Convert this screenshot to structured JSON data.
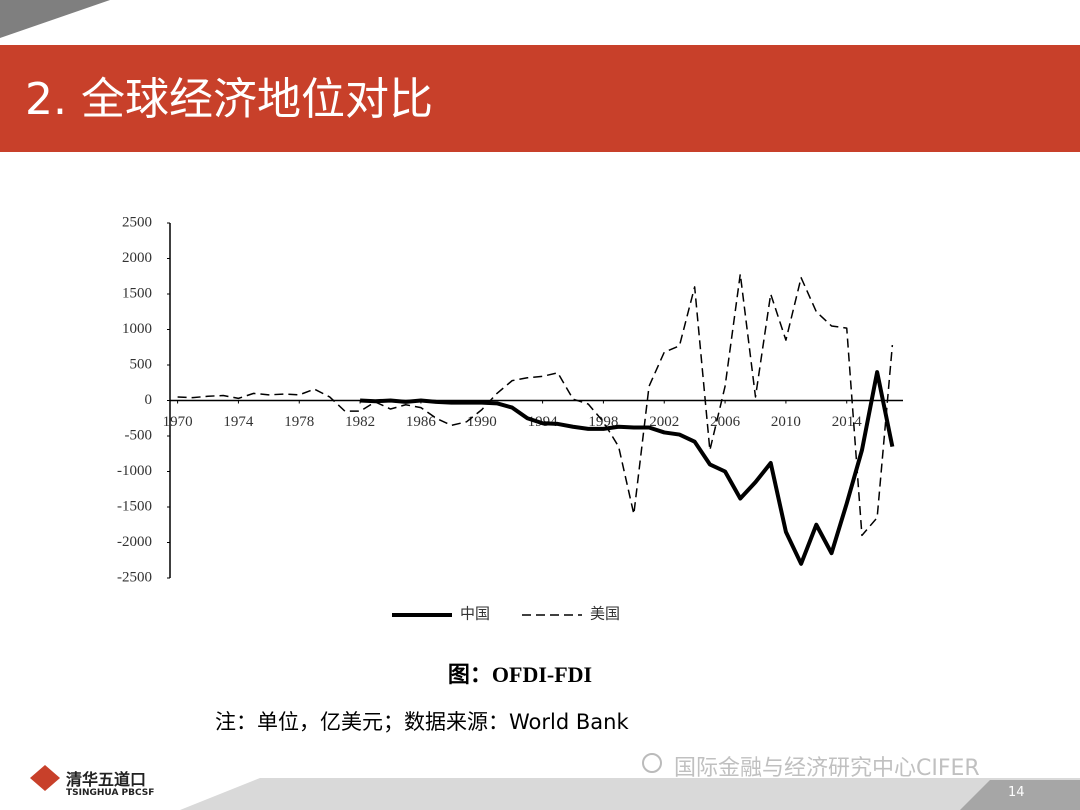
{
  "header": {
    "title": "2. 全球经济地位对比"
  },
  "chart_data": {
    "type": "line",
    "x": [
      1970,
      1971,
      1972,
      1973,
      1974,
      1975,
      1976,
      1977,
      1978,
      1979,
      1980,
      1981,
      1982,
      1983,
      1984,
      1985,
      1986,
      1987,
      1988,
      1989,
      1990,
      1991,
      1992,
      1993,
      1994,
      1995,
      1996,
      1997,
      1998,
      1999,
      2000,
      2001,
      2002,
      2003,
      2004,
      2005,
      2006,
      2007,
      2008,
      2009,
      2010,
      2011,
      2012,
      2013,
      2014,
      2015,
      2016,
      2017
    ],
    "series": [
      {
        "name": "中国",
        "color": "#000000",
        "style": "solid",
        "values": [
          null,
          null,
          null,
          null,
          null,
          null,
          null,
          null,
          null,
          null,
          null,
          null,
          0,
          -10,
          0,
          -20,
          0,
          -20,
          -30,
          -30,
          -30,
          -40,
          -100,
          -250,
          -320,
          -330,
          -370,
          -400,
          -400,
          -370,
          -380,
          -380,
          -450,
          -480,
          -580,
          -900,
          -1000,
          -1380,
          -1150,
          -880,
          -1850,
          -2300,
          -1750,
          -2150,
          -1450,
          -700,
          400,
          -650
        ]
      },
      {
        "name": "美国",
        "color": "#000000",
        "style": "dashed",
        "values": [
          50,
          40,
          60,
          70,
          30,
          100,
          80,
          90,
          80,
          160,
          50,
          -150,
          -150,
          -20,
          -120,
          -60,
          -100,
          -250,
          -350,
          -300,
          -130,
          100,
          280,
          320,
          340,
          390,
          20,
          -50,
          -300,
          -650,
          -1600,
          200,
          680,
          770,
          1600,
          -700,
          200,
          1780,
          50,
          1500,
          850,
          1730,
          1250,
          1050,
          1020,
          -1900,
          -1650,
          780
        ]
      }
    ],
    "xlim": [
      1969.5,
      2017.7
    ],
    "xticks": [
      1970,
      1974,
      1978,
      1982,
      1986,
      1990,
      1994,
      1998,
      2002,
      2006,
      2010,
      2014
    ],
    "ylim": [
      -2500,
      2500
    ],
    "yticks": [
      -2500,
      -2000,
      -1500,
      -1000,
      -500,
      0,
      500,
      1000,
      1500,
      2000,
      2500
    ],
    "legend": "bottom"
  },
  "caption": "图：OFDI-FDI",
  "note": "注：单位，亿美元；数据来源：World Bank",
  "watermark": "国际金融与经济研究中心CIFER",
  "logo": {
    "name": "清华五道口",
    "subtitle": "TSINGHUA PBCSF"
  },
  "page_number": "14"
}
